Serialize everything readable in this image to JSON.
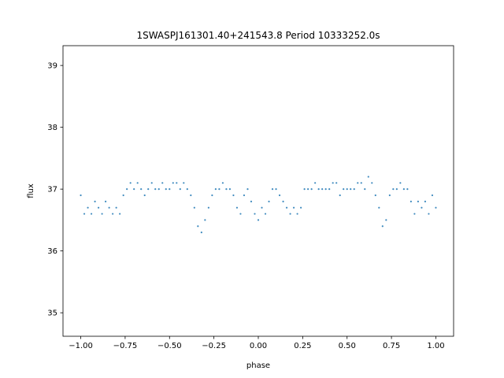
{
  "chart_data": {
    "type": "scatter",
    "title": "1SWASPJ161301.40+241543.8 Period 10333252.0s",
    "xlabel": "phase",
    "ylabel": "flux",
    "xlim": [
      -1.1,
      1.1
    ],
    "ylim": [
      34.62,
      39.32
    ],
    "x_ticks": [
      -1.0,
      -0.75,
      -0.5,
      -0.25,
      0.0,
      0.25,
      0.5,
      0.75,
      1.0
    ],
    "x_tick_labels": [
      "−1.00",
      "−0.75",
      "−0.50",
      "−0.25",
      "0.00",
      "0.25",
      "0.50",
      "0.75",
      "1.00"
    ],
    "y_ticks": [
      35,
      36,
      37,
      38,
      39
    ],
    "y_tick_labels": [
      "35",
      "36",
      "37",
      "38",
      "39"
    ],
    "grid": false,
    "legend": "none",
    "marker_color": "#1f77b4",
    "series": [
      {
        "x": [
          -1.0,
          -0.98,
          -0.96,
          -0.94,
          -0.92,
          -0.9,
          -0.88,
          -0.86,
          -0.84,
          -0.82,
          -0.8,
          -0.78,
          -0.76,
          -0.74,
          -0.72,
          -0.7,
          -0.68,
          -0.66,
          -0.64,
          -0.62,
          -0.6,
          -0.58,
          -0.56,
          -0.54,
          -0.52,
          -0.5,
          -0.48,
          -0.46,
          -0.44,
          -0.42,
          -0.4,
          -0.38,
          -0.36,
          -0.34,
          -0.32,
          -0.3,
          -0.28,
          -0.26,
          -0.24,
          -0.22,
          -0.2,
          -0.18,
          -0.16,
          -0.14,
          -0.12,
          -0.1,
          -0.08,
          -0.06,
          -0.04,
          -0.02,
          0.0,
          0.02,
          0.04,
          0.06,
          0.08,
          0.1,
          0.12,
          0.14,
          0.16,
          0.18,
          0.2,
          0.22,
          0.24,
          0.26,
          0.28,
          0.3,
          0.32,
          0.34,
          0.36,
          0.38,
          0.4,
          0.42,
          0.44,
          0.46,
          0.48,
          0.5,
          0.52,
          0.54,
          0.56,
          0.58,
          0.6,
          0.62,
          0.64,
          0.66,
          0.68,
          0.7,
          0.72,
          0.74,
          0.76,
          0.78,
          0.8,
          0.82,
          0.84,
          0.86,
          0.88,
          0.9,
          0.92,
          0.94,
          0.96,
          0.98,
          1.0
        ],
        "y": [
          36.9,
          36.6,
          36.7,
          36.6,
          36.8,
          36.7,
          36.6,
          36.8,
          36.7,
          36.6,
          36.7,
          36.6,
          36.9,
          37.0,
          37.1,
          37.0,
          37.1,
          37.0,
          36.9,
          37.0,
          37.1,
          37.0,
          37.0,
          37.1,
          37.0,
          37.0,
          37.1,
          37.1,
          37.0,
          37.1,
          37.0,
          36.9,
          36.7,
          36.4,
          36.3,
          36.5,
          36.7,
          36.9,
          37.0,
          37.0,
          37.1,
          37.0,
          37.0,
          36.9,
          36.7,
          36.6,
          36.9,
          37.0,
          36.8,
          36.6,
          36.5,
          36.7,
          36.6,
          36.8,
          37.0,
          37.0,
          36.9,
          36.8,
          36.7,
          36.6,
          36.7,
          36.6,
          36.7,
          37.0,
          37.0,
          37.0,
          37.1,
          37.0,
          37.0,
          37.0,
          37.0,
          37.1,
          37.1,
          36.9,
          37.0,
          37.0,
          37.0,
          37.0,
          37.1,
          37.1,
          37.0,
          37.2,
          37.1,
          36.9,
          36.7,
          36.4,
          36.5,
          36.9,
          37.0,
          37.0,
          37.1,
          37.0,
          37.0,
          36.8,
          36.6,
          36.8,
          36.7,
          36.8,
          36.6,
          36.9,
          36.7
        ]
      }
    ]
  }
}
